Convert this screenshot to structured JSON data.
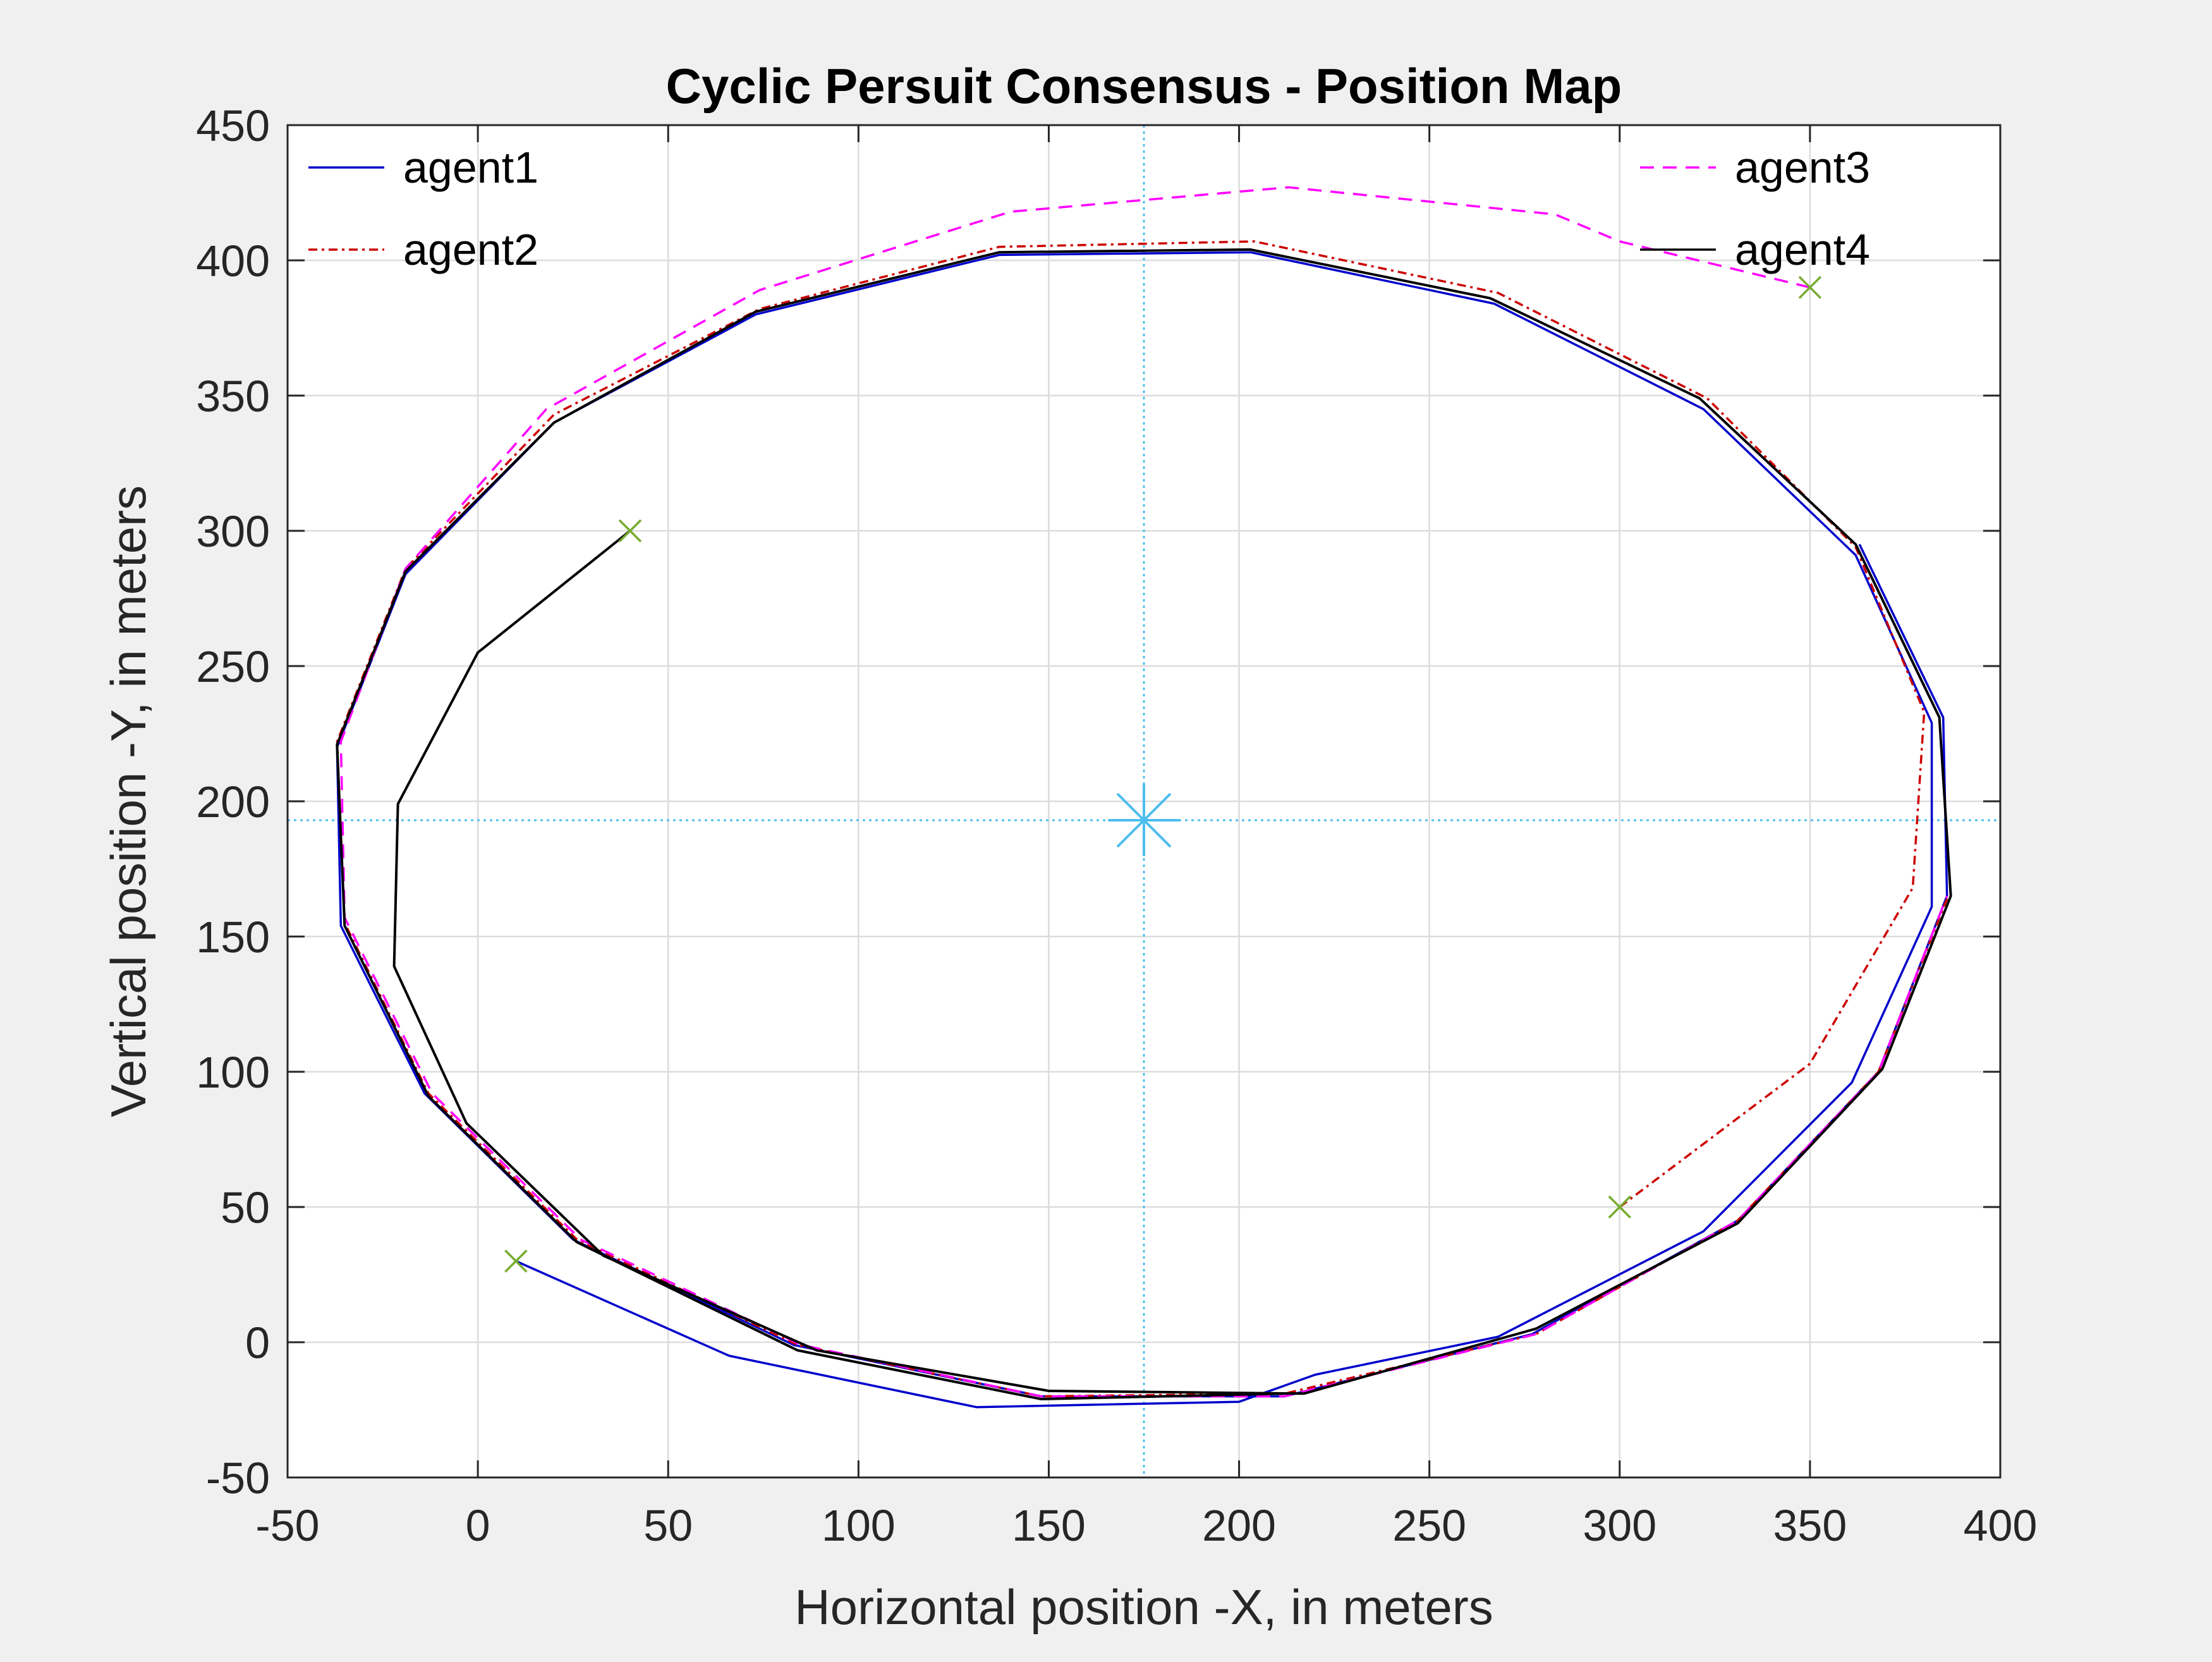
{
  "chart_data": {
    "type": "line",
    "title": "Cyclic Persuit Consensus - Position Map",
    "xlabel": "Horizontal position -X, in meters",
    "ylabel": "Vertical position -Y, in meters",
    "xlim": [
      -50,
      400
    ],
    "ylim": [
      -50,
      450
    ],
    "xticks": [
      -50,
      0,
      50,
      100,
      150,
      200,
      250,
      300,
      350,
      400
    ],
    "yticks": [
      -50,
      0,
      50,
      100,
      150,
      200,
      250,
      300,
      350,
      400,
      450
    ],
    "grid": true,
    "legend": {
      "left": [
        "agent1",
        "agent2"
      ],
      "right": [
        "agent3",
        "agent4"
      ],
      "placement": "top"
    },
    "colors": {
      "agent1": "#0000cc",
      "agent2": "#cc0000",
      "agent3": "#ff00ff",
      "agent4": "#000000",
      "start_marker": "#77ac30",
      "centroid": "#4dbeee"
    },
    "series": [
      {
        "name": "agent1",
        "style": "solid",
        "points": [
          [
            10,
            30
          ],
          [
            66,
            -5
          ],
          [
            131,
            -24
          ],
          [
            200,
            -22
          ],
          [
            220,
            -12
          ],
          [
            268,
            2
          ],
          [
            322,
            41
          ],
          [
            361,
            96
          ],
          [
            382,
            161
          ],
          [
            382,
            229
          ],
          [
            362,
            291
          ],
          [
            322,
            345
          ],
          [
            267,
            384
          ],
          [
            203,
            403
          ],
          [
            137,
            402
          ],
          [
            73,
            380
          ],
          [
            20,
            340
          ],
          [
            -19,
            284
          ],
          [
            -37,
            220
          ],
          [
            -36,
            154
          ],
          [
            -14,
            92
          ],
          [
            25,
            38
          ],
          [
            83,
            -1
          ],
          [
            148,
            -20
          ],
          [
            212,
            -20
          ],
          [
            277,
            3
          ],
          [
            331,
            45
          ],
          [
            368,
            100
          ],
          [
            386,
            165
          ],
          [
            385,
            231
          ],
          [
            363,
            295
          ]
        ]
      },
      {
        "name": "agent2",
        "style": "dashdot",
        "points": [
          [
            300,
            50
          ],
          [
            350,
            103
          ],
          [
            377,
            168
          ],
          [
            380,
            233
          ],
          [
            362,
            294
          ],
          [
            323,
            349
          ],
          [
            268,
            388
          ],
          [
            204,
            407
          ],
          [
            137,
            405
          ],
          [
            74,
            382
          ],
          [
            20,
            343
          ],
          [
            -19,
            286
          ],
          [
            -37,
            222
          ],
          [
            -35,
            155
          ],
          [
            -13,
            92
          ],
          [
            26,
            38
          ],
          [
            84,
            -1
          ],
          [
            148,
            -20
          ],
          [
            212,
            -19
          ],
          [
            278,
            3
          ],
          [
            331,
            45
          ],
          [
            368,
            100
          ],
          [
            386,
            164
          ]
        ]
      },
      {
        "name": "agent3",
        "style": "dashed",
        "points": [
          [
            350,
            390
          ],
          [
            300,
            407
          ],
          [
            283,
            417
          ],
          [
            213,
            427
          ],
          [
            140,
            418
          ],
          [
            74,
            389
          ],
          [
            18,
            345
          ],
          [
            -19,
            286
          ],
          [
            -36,
            222
          ],
          [
            -35,
            157
          ],
          [
            -12,
            92
          ],
          [
            27,
            38
          ],
          [
            85,
            -1
          ],
          [
            148,
            -20
          ],
          [
            212,
            -20
          ],
          [
            278,
            3
          ],
          [
            331,
            45
          ],
          [
            368,
            100
          ],
          [
            386,
            165
          ]
        ]
      },
      {
        "name": "agent4",
        "style": "solid",
        "points": [
          [
            40,
            300
          ],
          [
            0,
            255
          ],
          [
            -21,
            199
          ],
          [
            -22,
            139
          ],
          [
            -3,
            81
          ],
          [
            33,
            32
          ],
          [
            89,
            -3
          ],
          [
            150,
            -18
          ],
          [
            217,
            -19
          ],
          [
            278,
            5
          ],
          [
            331,
            44
          ],
          [
            369,
            101
          ],
          [
            387,
            165
          ],
          [
            384,
            231
          ],
          [
            362,
            295
          ],
          [
            321,
            349
          ],
          [
            266,
            386
          ],
          [
            203,
            404
          ],
          [
            137,
            403
          ],
          [
            73,
            381
          ],
          [
            20,
            340
          ],
          [
            -19,
            285
          ],
          [
            -37,
            221
          ],
          [
            -35,
            154
          ],
          [
            -13,
            91
          ],
          [
            26,
            37
          ],
          [
            84,
            -3
          ],
          [
            148,
            -21
          ],
          [
            212,
            -19
          ]
        ]
      }
    ],
    "start_points": [
      [
        10,
        30
      ],
      [
        300,
        50
      ],
      [
        350,
        390
      ],
      [
        40,
        300
      ]
    ],
    "centroid": [
      175,
      193
    ]
  }
}
